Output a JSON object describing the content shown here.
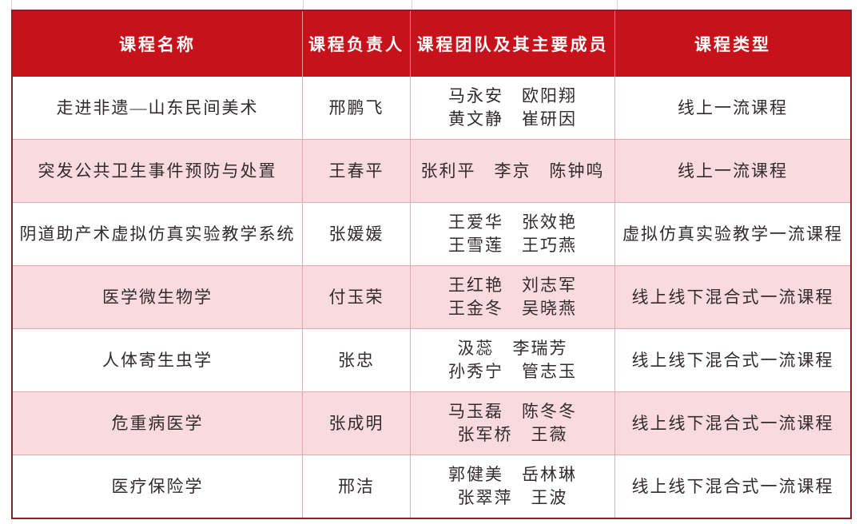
{
  "table": {
    "columns": [
      {
        "label": "课程名称"
      },
      {
        "label": "课程负责人"
      },
      {
        "label": "课程团队及其主要成员"
      },
      {
        "label": "课程类型"
      }
    ],
    "rows": [
      {
        "name": "走进非遗—山东民间美术",
        "leader": "邢鹏飞",
        "team": [
          "马永安　欧阳翔",
          "黄文静　崔研因"
        ],
        "type": "线上一流课程"
      },
      {
        "name": "突发公共卫生事件预防与处置",
        "leader": "王春平",
        "team": [
          "张利平　李京　陈钟鸣"
        ],
        "type": "线上一流课程"
      },
      {
        "name": "阴道助产术虚拟仿真实验教学系统",
        "leader": "张媛媛",
        "team": [
          "王爱华　张效艳",
          "王雪莲　王巧燕"
        ],
        "type": "虚拟仿真实验教学一流课程"
      },
      {
        "name": "医学微生物学",
        "leader": "付玉荣",
        "team": [
          "王红艳　刘志军",
          "王金冬　吴晓燕"
        ],
        "type": "线上线下混合式一流课程"
      },
      {
        "name": "人体寄生虫学",
        "leader": "张忠",
        "team": [
          "汲蕊　李瑞芳",
          "孙秀宁　管志玉"
        ],
        "type": "线上线下混合式一流课程"
      },
      {
        "name": "危重病医学",
        "leader": "张成明",
        "team": [
          "马玉磊　陈冬冬",
          "张军桥　王薇"
        ],
        "type": "线上线下混合式一流课程"
      },
      {
        "name": "医疗保险学",
        "leader": "邢洁",
        "team": [
          "郭健美　岳林琳",
          "张翠萍　王波"
        ],
        "type": "线上线下混合式一流课程"
      }
    ],
    "colors": {
      "header_bg": "#C8121B",
      "header_text": "#FFFFFF",
      "row_bg": "#FFFFFF",
      "row_alt_bg": "#F9DBDF",
      "grid_line": "#E3ACB2",
      "outer_border": "#842326",
      "body_text": "#322B2B"
    }
  }
}
